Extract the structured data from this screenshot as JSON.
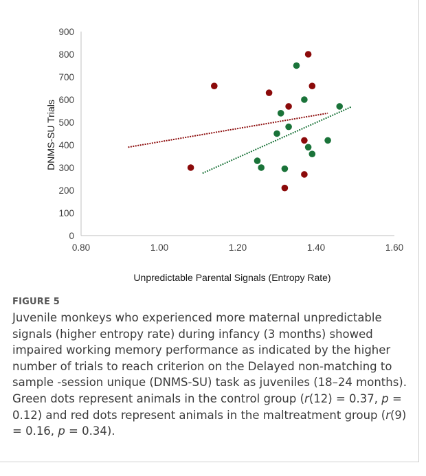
{
  "chart_data": {
    "type": "scatter",
    "title": "",
    "xlabel": "Unpredictable Parental Signals (Entropy Rate)",
    "ylabel": "DNMS-SU Trials",
    "xlim": [
      0.8,
      1.6
    ],
    "ylim": [
      0,
      900
    ],
    "x_ticks": [
      "0.80",
      "1.00",
      "1.20",
      "1.40",
      "1.60"
    ],
    "y_ticks": [
      "0",
      "100",
      "200",
      "300",
      "400",
      "500",
      "600",
      "700",
      "800",
      "900"
    ],
    "grid": false,
    "legend": "none",
    "series": [
      {
        "color": "#1a7339",
        "points": [
          {
            "x": 1.35,
            "y": 750
          },
          {
            "x": 1.37,
            "y": 600
          },
          {
            "x": 1.31,
            "y": 540
          },
          {
            "x": 1.46,
            "y": 570
          },
          {
            "x": 1.33,
            "y": 480
          },
          {
            "x": 1.3,
            "y": 450
          },
          {
            "x": 1.38,
            "y": 390
          },
          {
            "x": 1.43,
            "y": 420
          },
          {
            "x": 1.39,
            "y": 360
          },
          {
            "x": 1.25,
            "y": 330
          },
          {
            "x": 1.26,
            "y": 300
          },
          {
            "x": 1.32,
            "y": 295
          }
        ],
        "trendline": {
          "x": [
            1.11,
            1.49
          ],
          "y": [
            275,
            568
          ]
        }
      },
      {
        "color": "#8b0a0a",
        "points": [
          {
            "x": 1.38,
            "y": 800
          },
          {
            "x": 1.14,
            "y": 660
          },
          {
            "x": 1.39,
            "y": 660
          },
          {
            "x": 1.28,
            "y": 630
          },
          {
            "x": 1.33,
            "y": 570
          },
          {
            "x": 1.37,
            "y": 420
          },
          {
            "x": 1.08,
            "y": 300
          },
          {
            "x": 1.37,
            "y": 270
          },
          {
            "x": 1.32,
            "y": 210
          }
        ],
        "trendline": {
          "x": [
            0.92,
            1.43
          ],
          "y": [
            390,
            540
          ]
        }
      }
    ]
  },
  "figure_label": "FIGURE 5",
  "caption": {
    "p1": "Juvenile monkeys who experienced more maternal unpredictable signals (higher entropy rate) during infancy (3 months) showed impaired working memory performance as indicated by the higher number of trials to reach criterion on the Delayed non-matching to sample -session unique (DNMS-SU) task as juveniles (18–24 months). Green dots represent animals in the control group (",
    "r1": "r",
    "p2": "(12) = 0.37, ",
    "pv1": "p",
    "p3": " = 0.12) and red dots represent animals in the maltreatment group (",
    "r2": "r",
    "p4": "(9) = 0.16, ",
    "pv2": "p",
    "p5": " = 0.34)."
  }
}
